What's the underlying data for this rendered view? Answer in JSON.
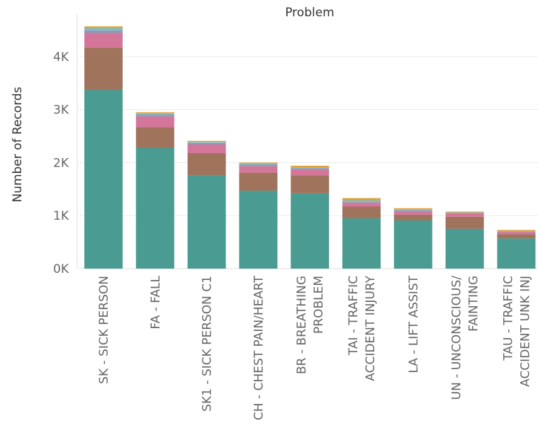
{
  "chart_data": {
    "type": "bar",
    "stacked": true,
    "title": "Problem",
    "xlabel": "",
    "ylabel": "Number of Records",
    "ylim": [
      0,
      4800
    ],
    "yticks": [
      {
        "value": 0,
        "label": "0K"
      },
      {
        "value": 1000,
        "label": "1K"
      },
      {
        "value": 2000,
        "label": "2K"
      },
      {
        "value": 3000,
        "label": "3K"
      },
      {
        "value": 4000,
        "label": "4K"
      }
    ],
    "grid": true,
    "legend": "none",
    "categories": [
      [
        "SK - SICK PERSON"
      ],
      [
        "FA - FALL"
      ],
      [
        "SK1 - SICK PERSON C1"
      ],
      [
        "CH - CHEST PAIN/HEART"
      ],
      [
        "BR - BREATHING",
        "PROBLEM"
      ],
      [
        "TAI - TRAFFIC",
        "ACCIDENT INJURY"
      ],
      [
        "LA - LIFT ASSIST"
      ],
      [
        "UN - UNCONSCIOUS/",
        "FAINTING"
      ],
      [
        "TAU - TRAFFIC",
        "ACCIDENT UNK INJ"
      ]
    ],
    "series": [
      {
        "color": "#4a9b91",
        "values": [
          3370,
          2280,
          1760,
          1470,
          1420,
          950,
          910,
          750,
          570
        ]
      },
      {
        "color": "#a0735d",
        "values": [
          800,
          390,
          420,
          340,
          340,
          220,
          110,
          230,
          80
        ]
      },
      {
        "color": "#d4759a",
        "values": [
          270,
          200,
          160,
          120,
          110,
          70,
          60,
          60,
          40
        ]
      },
      {
        "color": "#9a8fb0",
        "values": [
          50,
          30,
          30,
          30,
          20,
          20,
          20,
          10,
          10
        ]
      },
      {
        "color": "#7cbcc4",
        "values": [
          50,
          30,
          20,
          20,
          20,
          30,
          20,
          10,
          10
        ]
      },
      {
        "color": "#e0a135",
        "values": [
          30,
          20,
          20,
          20,
          30,
          40,
          20,
          15,
          20
        ]
      }
    ]
  }
}
